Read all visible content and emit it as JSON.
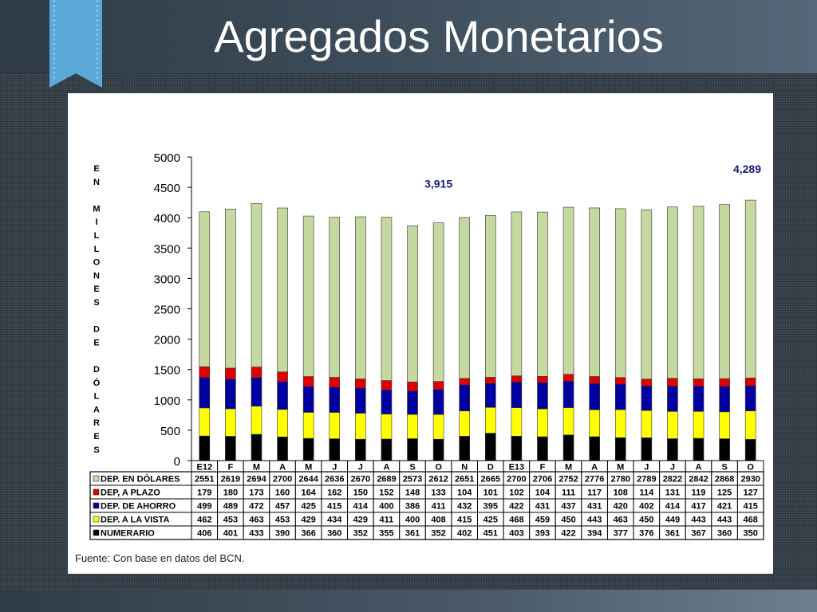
{
  "slide": {
    "title": "Agregados Monetarios",
    "source": "Fuente: Con base en datos del BCN."
  },
  "colors": {
    "numerario": "#000000",
    "dep_vista": "#ffff00",
    "dep_ahorro": "#0000a0",
    "dep_plazo": "#e00000",
    "dep_dolares": "#c4d8a0",
    "annotation": "#1a1a7a",
    "ribbon": "#5aa9d6"
  },
  "chart_data": {
    "type": "bar",
    "stacked": true,
    "ylabel_letters": [
      "E",
      "N",
      "",
      "M",
      "I",
      "L",
      "L",
      "O",
      "N",
      "E",
      "S",
      "",
      "D",
      "E",
      "",
      "D",
      "Ó",
      "L",
      "A",
      "R",
      "E",
      "S"
    ],
    "ylim": [
      0,
      5000
    ],
    "yticks": [
      0,
      500,
      1000,
      1500,
      2000,
      2500,
      3000,
      3500,
      4000,
      4500,
      5000
    ],
    "categories": [
      "E12",
      "F",
      "M",
      "A",
      "M",
      "J",
      "J",
      "A",
      "S",
      "O",
      "N",
      "D",
      "E13",
      "F",
      "M",
      "A",
      "M",
      "J",
      "J",
      "A",
      "S",
      "O"
    ],
    "series": [
      {
        "name": "NUMERARIO",
        "color_key": "numerario",
        "values": [
          406,
          401,
          433,
          390,
          366,
          360,
          352,
          355,
          361,
          352,
          402,
          451,
          403,
          393,
          422,
          394,
          377,
          376,
          361,
          367,
          360,
          350
        ]
      },
      {
        "name": "DEP. A LA VISTA",
        "color_key": "dep_vista",
        "values": [
          462,
          453,
          463,
          453,
          429,
          434,
          429,
          411,
          400,
          408,
          415,
          425,
          468,
          459,
          450,
          443,
          463,
          450,
          449,
          443,
          443,
          468
        ]
      },
      {
        "name": "DEP. DE AHORRO",
        "color_key": "dep_ahorro",
        "values": [
          499,
          489,
          472,
          457,
          425,
          415,
          414,
          400,
          386,
          411,
          432,
          395,
          422,
          431,
          437,
          431,
          420,
          402,
          414,
          417,
          421,
          415
        ]
      },
      {
        "name": "DEP, A PLAZO",
        "color_key": "dep_plazo",
        "values": [
          179,
          180,
          173,
          160,
          164,
          162,
          150,
          152,
          148,
          133,
          104,
          101,
          102,
          104,
          111,
          117,
          108,
          114,
          131,
          119,
          125,
          127
        ]
      },
      {
        "name": "DEP. EN DÓLARES",
        "color_key": "dep_dolares",
        "values": [
          2551,
          2619,
          2694,
          2700,
          2644,
          2636,
          2670,
          2689,
          2573,
          2612,
          2651,
          2665,
          2700,
          2706,
          2752,
          2776,
          2780,
          2789,
          2822,
          2842,
          2868,
          2930
        ]
      }
    ],
    "table_row_order": [
      4,
      3,
      2,
      1,
      0
    ],
    "annotations": [
      {
        "text": "3,915",
        "category_index": 9
      },
      {
        "text": "4,289",
        "category_index": 21
      }
    ]
  }
}
